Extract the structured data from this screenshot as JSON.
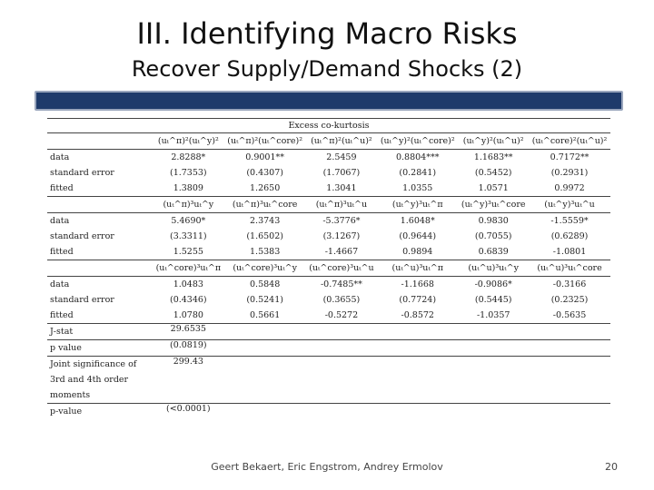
{
  "header": {
    "title": "III. Identifying Macro Risks",
    "subtitle": "Recover Supply/Demand Shocks (2)"
  },
  "table": {
    "caption": "Excess co-kurtosis",
    "blocks": [
      {
        "header": [
          "(uₜ^π)²(uₜ^y)²",
          "(uₜ^π)²(uₜ^core)²",
          "(uₜ^π)²(uₜ^u)²",
          "(uₜ^y)²(uₜ^core)²",
          "(uₜ^y)²(uₜ^u)²",
          "(uₜ^core)²(uₜ^u)²"
        ],
        "rows": [
          [
            "data",
            "2.8288*",
            "0.9001**",
            "2.5459",
            "0.8804***",
            "1.1683**",
            "0.7172**"
          ],
          [
            "standard error",
            "(1.7353)",
            "(0.4307)",
            "(1.7067)",
            "(0.2841)",
            "(0.5452)",
            "(0.2931)"
          ],
          [
            "fitted",
            "1.3809",
            "1.2650",
            "1.3041",
            "1.0355",
            "1.0571",
            "0.9972"
          ]
        ]
      },
      {
        "header": [
          "(uₜ^π)³uₜ^y",
          "(uₜ^π)³uₜ^core",
          "(uₜ^π)³uₜ^u",
          "(uₜ^y)³uₜ^π",
          "(uₜ^y)³uₜ^core",
          "(uₜ^y)³uₜ^u"
        ],
        "rows": [
          [
            "data",
            "5.4690*",
            "2.3743",
            "-5.3776*",
            "1.6048*",
            "0.9830",
            "-1.5559*"
          ],
          [
            "standard error",
            "(3.3311)",
            "(1.6502)",
            "(3.1267)",
            "(0.9644)",
            "(0.7055)",
            "(0.6289)"
          ],
          [
            "fitted",
            "1.5255",
            "1.5383",
            "-1.4667",
            "0.9894",
            "0.6839",
            "-1.0801"
          ]
        ]
      },
      {
        "header": [
          "(uₜ^core)³uₜ^π",
          "(uₜ^core)³uₜ^y",
          "(uₜ^core)³uₜ^u",
          "(uₜ^u)³uₜ^π",
          "(uₜ^u)³uₜ^y",
          "(uₜ^u)³uₜ^core"
        ],
        "rows": [
          [
            "data",
            "1.0483",
            "0.5848",
            "-0.7485**",
            "-1.1668",
            "-0.9086*",
            "-0.3166"
          ],
          [
            "standard error",
            "(0.4346)",
            "(0.5241)",
            "(0.3655)",
            "(0.7724)",
            "(0.5445)",
            "(0.2325)"
          ],
          [
            "fitted",
            "1.0780",
            "0.5661",
            "-0.5272",
            "-0.8572",
            "-1.0357",
            "-0.5635"
          ]
        ]
      }
    ],
    "stats": [
      [
        "J-stat",
        "29.6535"
      ],
      [
        "p value",
        "(0.0819)"
      ],
      [
        "Joint significance of 3rd and 4th order moments",
        "299.43"
      ],
      [
        "p-value",
        "(<0.0001)"
      ]
    ]
  },
  "footer": {
    "authors": "Geert Bekaert, Eric Engstrom, Andrey Ermolov",
    "page": "20"
  }
}
